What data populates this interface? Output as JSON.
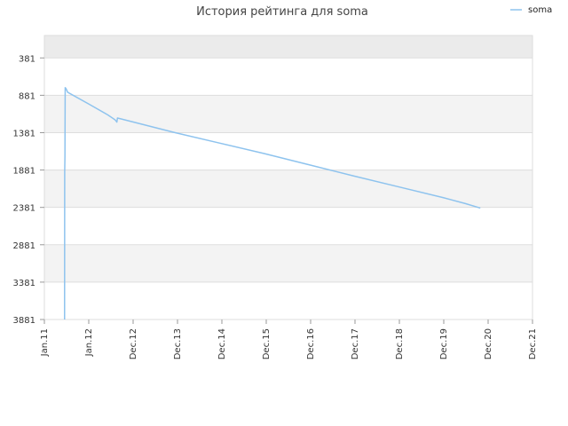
{
  "chart_data": {
    "type": "line",
    "title": "История рейтинга для soma",
    "xlabel": "",
    "ylabel": "",
    "y_inverted": true,
    "ylim": [
      3881,
      81
    ],
    "y_ticks": [
      381,
      881,
      1381,
      1881,
      2381,
      2881,
      3381,
      3881
    ],
    "x_ticks": [
      "Jan.11",
      "Jan.12",
      "Dec.12",
      "Dec.13",
      "Dec.14",
      "Dec.15",
      "Dec.16",
      "Dec.17",
      "Dec.18",
      "Dec.19",
      "Dec.20",
      "Dec.21"
    ],
    "xlim": [
      "2011-01",
      "2021-12"
    ],
    "grid": true,
    "legend_position": "top-right",
    "colors": {
      "series": "#8ec3ee",
      "band_dark": "#ebebeb",
      "band_light": "#f3f3f3",
      "grid": "#dddddd",
      "border": "#dddddd"
    },
    "series": [
      {
        "name": "soma",
        "points": [
          {
            "x": "2011-06-15",
            "y": 3881
          },
          {
            "x": "2011-06-16",
            "y": 1900
          },
          {
            "x": "2011-06-18",
            "y": 1700
          },
          {
            "x": "2011-06-20",
            "y": 779
          },
          {
            "x": "2011-06-28",
            "y": 795
          },
          {
            "x": "2011-07-10",
            "y": 840
          },
          {
            "x": "2012-01-01",
            "y": 1000
          },
          {
            "x": "2012-06-01",
            "y": 1142
          },
          {
            "x": "2012-08-01",
            "y": 1210
          },
          {
            "x": "2012-08-15",
            "y": 1240
          },
          {
            "x": "2012-08-20",
            "y": 1185
          },
          {
            "x": "2012-09-01",
            "y": 1190
          },
          {
            "x": "2013-12-01",
            "y": 1380
          },
          {
            "x": "2014-12-01",
            "y": 1520
          },
          {
            "x": "2015-12-01",
            "y": 1660
          },
          {
            "x": "2016-12-01",
            "y": 1810
          },
          {
            "x": "2017-12-01",
            "y": 1960
          },
          {
            "x": "2018-12-01",
            "y": 2105
          },
          {
            "x": "2019-12-01",
            "y": 2250
          },
          {
            "x": "2020-06-01",
            "y": 2330
          },
          {
            "x": "2020-10-01",
            "y": 2390
          }
        ]
      }
    ]
  }
}
